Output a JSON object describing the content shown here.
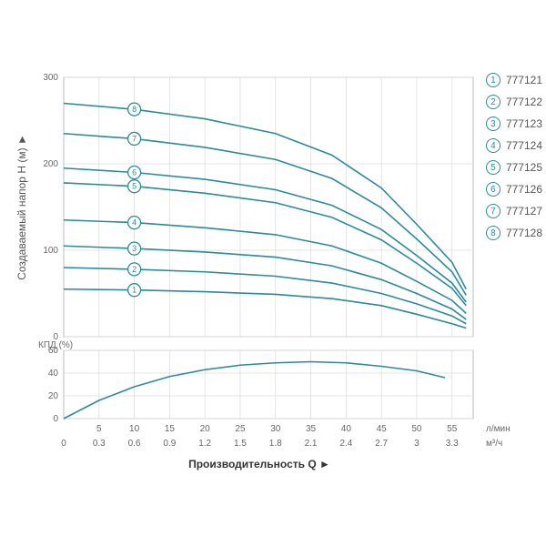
{
  "legend": [
    {
      "num": "1",
      "label": "777121"
    },
    {
      "num": "2",
      "label": "777122"
    },
    {
      "num": "3",
      "label": "777123"
    },
    {
      "num": "4",
      "label": "777124"
    },
    {
      "num": "5",
      "label": "777125"
    },
    {
      "num": "6",
      "label": "777126"
    },
    {
      "num": "7",
      "label": "777127"
    },
    {
      "num": "8",
      "label": "777128"
    }
  ],
  "colors": {
    "curve": "#2b8a9a",
    "grid": "#dddddd",
    "axis": "#bbbbbb",
    "text": "#555555",
    "background": "#ffffff"
  },
  "main_chart": {
    "type": "line",
    "x_lmin": [
      5,
      10,
      15,
      20,
      25,
      30,
      35,
      40,
      45,
      50,
      55
    ],
    "x_m3h": [
      0,
      0.3,
      0.6,
      0.9,
      1.2,
      1.5,
      1.8,
      2.1,
      2.4,
      2.7,
      3.0,
      3.3
    ],
    "y_ticks": [
      0,
      100,
      200,
      300
    ],
    "ylim": [
      0,
      300
    ],
    "xlim": [
      0,
      58
    ],
    "series": [
      {
        "id": "1",
        "marker_x": 10,
        "data": [
          [
            0,
            55
          ],
          [
            10,
            54
          ],
          [
            20,
            52
          ],
          [
            30,
            49
          ],
          [
            38,
            44
          ],
          [
            45,
            36
          ],
          [
            50,
            26
          ],
          [
            55,
            15
          ],
          [
            57,
            10
          ]
        ]
      },
      {
        "id": "2",
        "marker_x": 10,
        "data": [
          [
            0,
            80
          ],
          [
            10,
            78
          ],
          [
            20,
            75
          ],
          [
            30,
            70
          ],
          [
            38,
            62
          ],
          [
            45,
            50
          ],
          [
            50,
            38
          ],
          [
            55,
            24
          ],
          [
            57,
            15
          ]
        ]
      },
      {
        "id": "3",
        "marker_x": 10,
        "data": [
          [
            0,
            105
          ],
          [
            10,
            102
          ],
          [
            20,
            98
          ],
          [
            30,
            92
          ],
          [
            38,
            82
          ],
          [
            45,
            66
          ],
          [
            50,
            50
          ],
          [
            55,
            32
          ],
          [
            57,
            20
          ]
        ]
      },
      {
        "id": "4",
        "marker_x": 10,
        "data": [
          [
            0,
            135
          ],
          [
            10,
            132
          ],
          [
            20,
            126
          ],
          [
            30,
            118
          ],
          [
            38,
            105
          ],
          [
            45,
            85
          ],
          [
            50,
            64
          ],
          [
            55,
            42
          ],
          [
            57,
            27
          ]
        ]
      },
      {
        "id": "5",
        "marker_x": 10,
        "data": [
          [
            0,
            178
          ],
          [
            10,
            174
          ],
          [
            20,
            166
          ],
          [
            30,
            155
          ],
          [
            38,
            138
          ],
          [
            45,
            112
          ],
          [
            50,
            85
          ],
          [
            55,
            56
          ],
          [
            57,
            36
          ]
        ]
      },
      {
        "id": "6",
        "marker_x": 10,
        "data": [
          [
            0,
            195
          ],
          [
            10,
            190
          ],
          [
            20,
            182
          ],
          [
            30,
            170
          ],
          [
            38,
            152
          ],
          [
            45,
            124
          ],
          [
            50,
            94
          ],
          [
            55,
            62
          ],
          [
            57,
            40
          ]
        ]
      },
      {
        "id": "7",
        "marker_x": 10,
        "data": [
          [
            0,
            235
          ],
          [
            10,
            229
          ],
          [
            20,
            219
          ],
          [
            30,
            205
          ],
          [
            38,
            183
          ],
          [
            45,
            149
          ],
          [
            50,
            113
          ],
          [
            55,
            75
          ],
          [
            57,
            48
          ]
        ]
      },
      {
        "id": "8",
        "marker_x": 10,
        "data": [
          [
            0,
            270
          ],
          [
            10,
            263
          ],
          [
            20,
            252
          ],
          [
            30,
            235
          ],
          [
            38,
            210
          ],
          [
            45,
            172
          ],
          [
            50,
            130
          ],
          [
            55,
            86
          ],
          [
            57,
            55
          ]
        ]
      }
    ]
  },
  "kpd_chart": {
    "type": "line",
    "y_ticks": [
      0,
      20,
      40,
      60
    ],
    "ylim": [
      0,
      60
    ],
    "xlim": [
      0,
      58
    ],
    "data": [
      [
        0,
        0
      ],
      [
        5,
        16
      ],
      [
        10,
        28
      ],
      [
        15,
        37
      ],
      [
        20,
        43
      ],
      [
        25,
        47
      ],
      [
        30,
        49
      ],
      [
        35,
        50
      ],
      [
        40,
        49
      ],
      [
        45,
        46
      ],
      [
        50,
        42
      ],
      [
        54,
        36
      ]
    ]
  },
  "labels": {
    "y_main": "Создаваемый напор H (м)",
    "y_kpd": "КПД (%)",
    "x_main": "Производительность Q",
    "x_unit_top": "л/мин",
    "x_unit_bot": "м³/ч",
    "arrow": "►"
  },
  "style": {
    "line_width": 1.6,
    "marker_radius": 7,
    "tick_fontsize": 10,
    "label_fontsize": 12
  }
}
